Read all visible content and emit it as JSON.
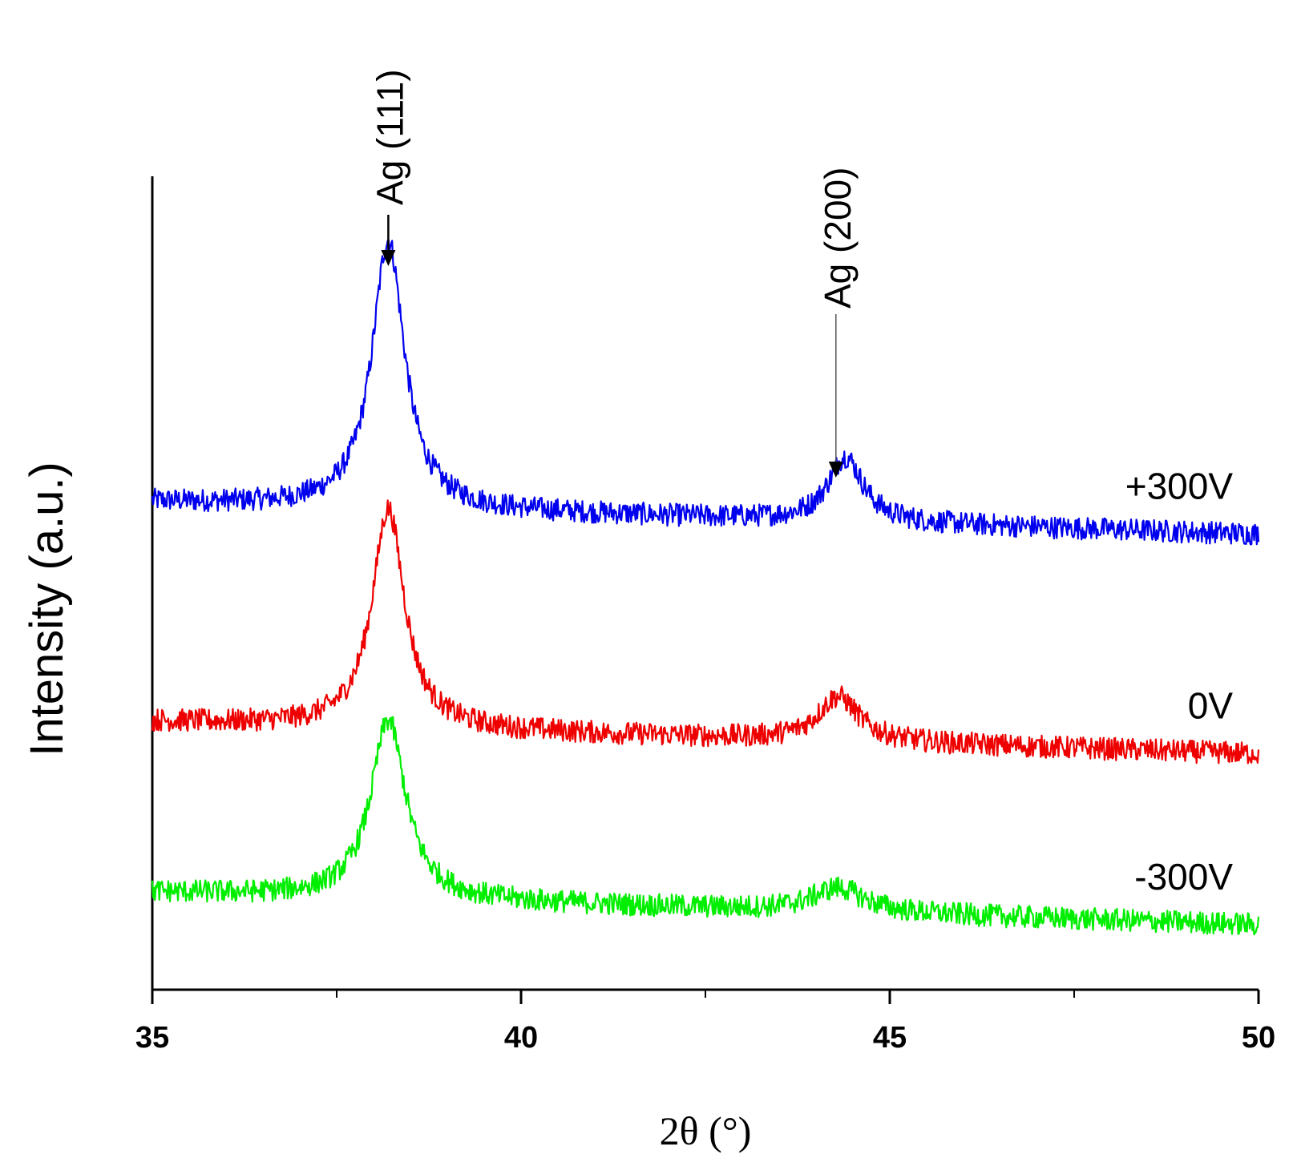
{
  "chart_data": {
    "type": "line",
    "title": "",
    "xlabel": "2θ (°)",
    "ylabel": "Intensity (a.u.)",
    "xlim": [
      35,
      50
    ],
    "ylim": [
      0,
      1
    ],
    "xticks": [
      35,
      40,
      45,
      50
    ],
    "xtick_labels": [
      "35",
      "40",
      "45",
      "50"
    ],
    "minor_xticks": [
      37.5,
      42.5,
      47.5
    ],
    "y_ticks_shown": false,
    "grid": false,
    "series": [
      {
        "name": "+300V",
        "color": "#0000ee",
        "offset": 0.56,
        "peaks": [
          {
            "center": 38.2,
            "height": 0.33,
            "width": 0.28
          },
          {
            "center": 44.4,
            "height": 0.08,
            "width": 0.3
          }
        ],
        "baseline_start": 0.04,
        "baseline_end": 0.0
      },
      {
        "name": "0V",
        "color": "#ee0000",
        "offset": 0.29,
        "peaks": [
          {
            "center": 38.2,
            "height": 0.27,
            "width": 0.28
          },
          {
            "center": 44.3,
            "height": 0.055,
            "width": 0.35
          }
        ],
        "baseline_start": 0.04,
        "baseline_end": 0.0
      },
      {
        "name": "-300V",
        "color": "#00ee00",
        "offset": 0.08,
        "peaks": [
          {
            "center": 38.2,
            "height": 0.22,
            "width": 0.3
          },
          {
            "center": 44.3,
            "height": 0.03,
            "width": 0.45
          }
        ],
        "baseline_start": 0.04,
        "baseline_end": 0.0
      }
    ],
    "annotations": [
      {
        "text": "Ag (111)",
        "x": 38.2
      },
      {
        "text": "Ag (200)",
        "x": 44.4
      }
    ]
  }
}
